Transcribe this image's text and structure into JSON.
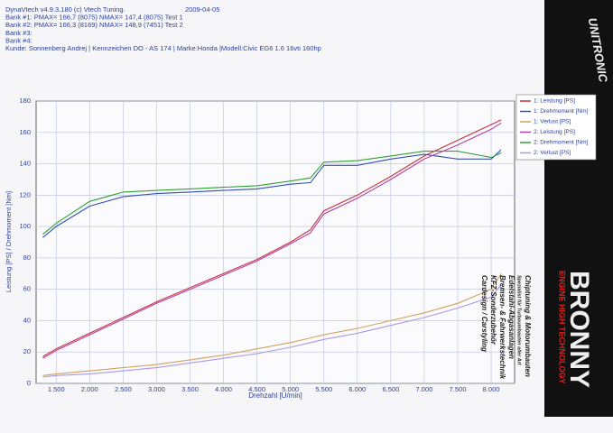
{
  "chart_data": {
    "type": "line",
    "header": [
      "DynaVtech v4.9.3.180 (c) Vtech Tuning.",
      "Bank #1:  PMAX= 166,7 (8075)    NMAX= 147,4 (8075)   Test 1",
      "Bank #2:  PMAX= 166,3 (8169)    NMAX= 148,9 (7451)   Test 2",
      "Bank #3:",
      "Bank #4:",
      "Kunde: Sonnenberg Andrej | Kennzeichen DO - AS 174 | Marke:Honda |Modell:Civic EG6 1.6 16vti 160hp"
    ],
    "date": "2009-04-05",
    "xlabel": "Drehzahl [U/min]",
    "ylabel": "Leistung [PS] / Drehmoment [Nm]",
    "x": [
      1300,
      1500,
      2000,
      2500,
      3000,
      3500,
      4000,
      4500,
      5000,
      5300,
      5500,
      6000,
      6500,
      7000,
      7500,
      8000,
      8150
    ],
    "series": [
      {
        "name": "1: Leistung [PS]",
        "color": "#c8303a",
        "values": [
          17,
          22,
          32,
          42,
          52,
          61,
          70,
          79,
          90,
          98,
          110,
          120,
          132,
          145,
          155,
          165,
          168
        ]
      },
      {
        "name": "1: Drehmoment [Nm]",
        "color": "#3050b8",
        "values": [
          93,
          100,
          113,
          119,
          121,
          122,
          123,
          124,
          127,
          128,
          139,
          139,
          143,
          146,
          143,
          143,
          149
        ]
      },
      {
        "name": "1: Verlust [PS]",
        "color": "#d4a060",
        "values": [
          5,
          6,
          8,
          10,
          12,
          15,
          18,
          22,
          26,
          29,
          31,
          35,
          40,
          45,
          51,
          60,
          70
        ]
      },
      {
        "name": "2: Leistung [PS]",
        "color": "#b040a8",
        "values": [
          16,
          21,
          31,
          41,
          51,
          60,
          69,
          78,
          89,
          96,
          108,
          118,
          130,
          143,
          152,
          162,
          166
        ]
      },
      {
        "name": "2: Drehmoment [Nm]",
        "color": "#30a038",
        "values": [
          95,
          102,
          116,
          122,
          123,
          124,
          125,
          126,
          129,
          131,
          141,
          142,
          145,
          148,
          148,
          144,
          147
        ]
      },
      {
        "name": "2: Verlust [PS]",
        "color": "#a898e8",
        "values": [
          4,
          5,
          6,
          8,
          10,
          13,
          16,
          19,
          23,
          26,
          28,
          32,
          37,
          42,
          48,
          55,
          63
        ]
      }
    ],
    "xlim": [
      1200,
      8350
    ],
    "xticks": [
      {
        "value": 1500,
        "label": "1.500"
      },
      {
        "value": 2000,
        "label": "2.000"
      },
      {
        "value": 2500,
        "label": "2.500"
      },
      {
        "value": 3000,
        "label": "3.000"
      },
      {
        "value": 3500,
        "label": "3.500"
      },
      {
        "value": 4000,
        "label": "4.000"
      },
      {
        "value": 4500,
        "label": "4.500"
      },
      {
        "value": 5000,
        "label": "5.000"
      },
      {
        "value": 5500,
        "label": "5.500"
      },
      {
        "value": 6000,
        "label": "6.000"
      },
      {
        "value": 6500,
        "label": "6.500"
      },
      {
        "value": 7000,
        "label": "7.000"
      },
      {
        "value": 7500,
        "label": "7.500"
      },
      {
        "value": 8000,
        "label": "8.000"
      }
    ],
    "ylim": [
      0,
      180
    ],
    "yticks": [
      0,
      20,
      40,
      60,
      80,
      100,
      120,
      140,
      160,
      180
    ],
    "grid": true,
    "legend": "right",
    "ads": [
      "Chiptuning & Motorumbauten",
      "Spezialist für Turboumbauten aller Art",
      "Edelstahl-Abgasanlagen",
      "Bremsen- & Fahrwerkstechnik",
      "KFZ-Sonderzubehör",
      "Cardesign / Carstyling"
    ],
    "brands": [
      "UNITRONIC",
      "BRONNY",
      "ENGINE HIGH TECHNOLOGY"
    ]
  }
}
